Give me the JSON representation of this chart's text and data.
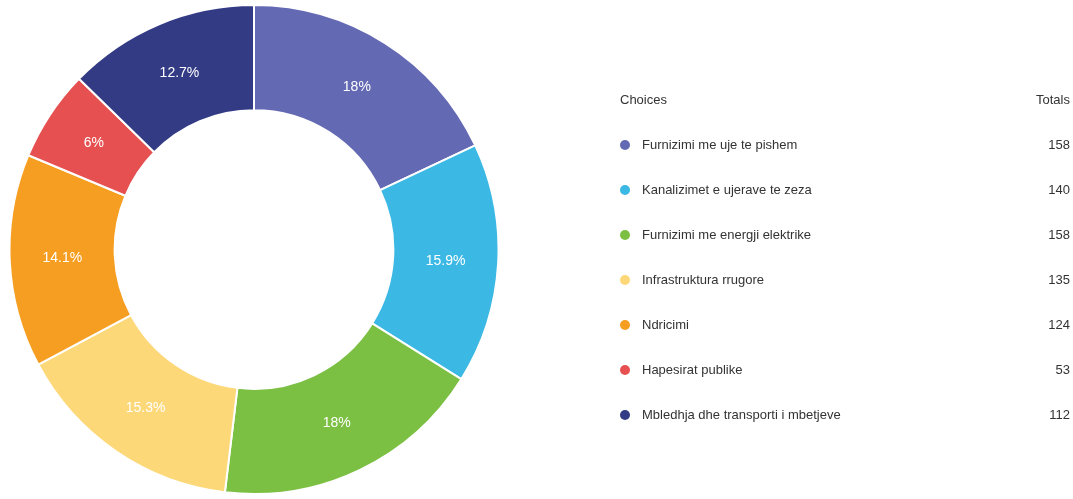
{
  "chart_data": {
    "type": "donut",
    "categories": [
      "Furnizimi me uje te pishem",
      "Kanalizimet e ujerave te zeza",
      "Furnizimi me energji elektrike",
      "Infrastruktura rrugore",
      "Ndricimi",
      "Hapesirat publike",
      "Mbledhja dhe transporti i mbetjeve"
    ],
    "values": [
      18,
      15.9,
      18,
      15.3,
      14.1,
      6,
      12.7
    ],
    "totals": [
      "158",
      "140",
      "158",
      "135",
      "124",
      "53",
      "112"
    ],
    "colors": [
      "#6469b3",
      "#3bb8e3",
      "#7bbf43",
      "#fdd878",
      "#f59e21",
      "#e65050",
      "#333b85"
    ],
    "value_labels": [
      "18%",
      "15.9%",
      "18%",
      "15.3%",
      "14.1%",
      "6%",
      "12.7%"
    ],
    "legend": "right",
    "legend_title": "Choices",
    "annotations": [
      "Totals"
    ]
  }
}
